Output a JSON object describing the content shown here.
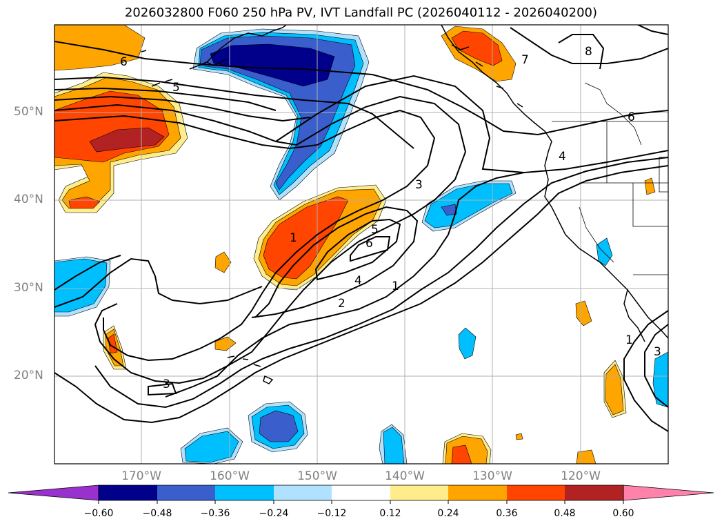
{
  "title": "2026032800 F060 250 hPa PV, IVT Landfall PC (2026040112 - 2026040200)",
  "lat_labels": [
    "50°N",
    "40°N",
    "30°N",
    "20°N"
  ],
  "lon_labels": [
    "170°W",
    "160°W",
    "150°W",
    "140°W",
    "130°W",
    "120°W"
  ],
  "colorbar": {
    "ticks": [
      "−0.60",
      "−0.48",
      "−0.36",
      "−0.24",
      "−0.12",
      "0.12",
      "0.24",
      "0.36",
      "0.48",
      "0.60"
    ],
    "colors": [
      "#9932cc",
      "#00008b",
      "#3a5fcd",
      "#00bfff",
      "#b0e2ff",
      "#ffffff",
      "#ffec8b",
      "#ffa500",
      "#ff4500",
      "#b22222",
      "#ff82ab"
    ]
  },
  "contour_labels": [
    "6",
    "5",
    "3",
    "1",
    "5",
    "6",
    "4",
    "2",
    "1",
    "3",
    "7",
    "8",
    "6",
    "4",
    "1",
    "3"
  ]
}
